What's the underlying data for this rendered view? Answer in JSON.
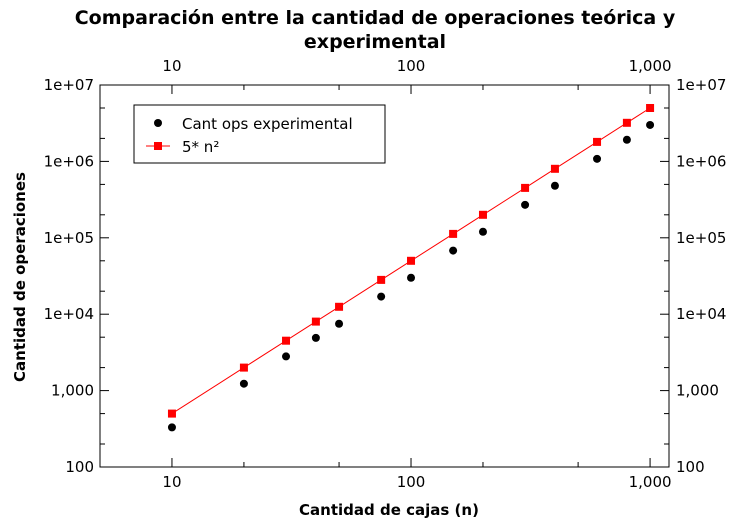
{
  "chart_data": {
    "type": "scatter",
    "title_line1": "Comparación entre la cantidad de operaciones teórica y",
    "title_line2": "experimental",
    "xlabel": "Cantidad de cajas (n)",
    "ylabel": "Cantidad de operaciones",
    "x_scale": "log",
    "y_scale": "log",
    "xlim": [
      5,
      1200
    ],
    "ylim": [
      100,
      10000000
    ],
    "x_ticks": [
      {
        "value": 10,
        "label": "10"
      },
      {
        "value": 100,
        "label": "100"
      },
      {
        "value": 1000,
        "label": "1,000"
      }
    ],
    "y_ticks": [
      {
        "value": 100,
        "label": "100"
      },
      {
        "value": 1000,
        "label": "1,000"
      },
      {
        "value": 10000,
        "label": "1e+04"
      },
      {
        "value": 100000,
        "label": "1e+05"
      },
      {
        "value": 1000000,
        "label": "1e+06"
      },
      {
        "value": 10000000,
        "label": "1e+07"
      }
    ],
    "legend_position": "top-left",
    "grid": false,
    "series": [
      {
        "name": "Cant ops experimental",
        "style": "markers",
        "marker": "circle",
        "color": "#000000",
        "points": [
          [
            10,
            330
          ],
          [
            20,
            1230
          ],
          [
            30,
            2800
          ],
          [
            40,
            4900
          ],
          [
            50,
            7500
          ],
          [
            75,
            17000
          ],
          [
            100,
            30000
          ],
          [
            150,
            68000
          ],
          [
            200,
            120000
          ],
          [
            300,
            270000
          ],
          [
            400,
            480000
          ],
          [
            600,
            1080000
          ],
          [
            800,
            1920000
          ],
          [
            1000,
            3000000
          ]
        ]
      },
      {
        "name": "5* n²",
        "style": "line+markers",
        "marker": "square",
        "color": "#ff0000",
        "points": [
          [
            10,
            500
          ],
          [
            20,
            2000
          ],
          [
            30,
            4500
          ],
          [
            40,
            8000
          ],
          [
            50,
            12500
          ],
          [
            75,
            28125
          ],
          [
            100,
            50000
          ],
          [
            150,
            112500
          ],
          [
            200,
            200000
          ],
          [
            300,
            450000
          ],
          [
            400,
            800000
          ],
          [
            600,
            1800000
          ],
          [
            800,
            3200000
          ],
          [
            1000,
            5000000
          ]
        ]
      }
    ]
  }
}
